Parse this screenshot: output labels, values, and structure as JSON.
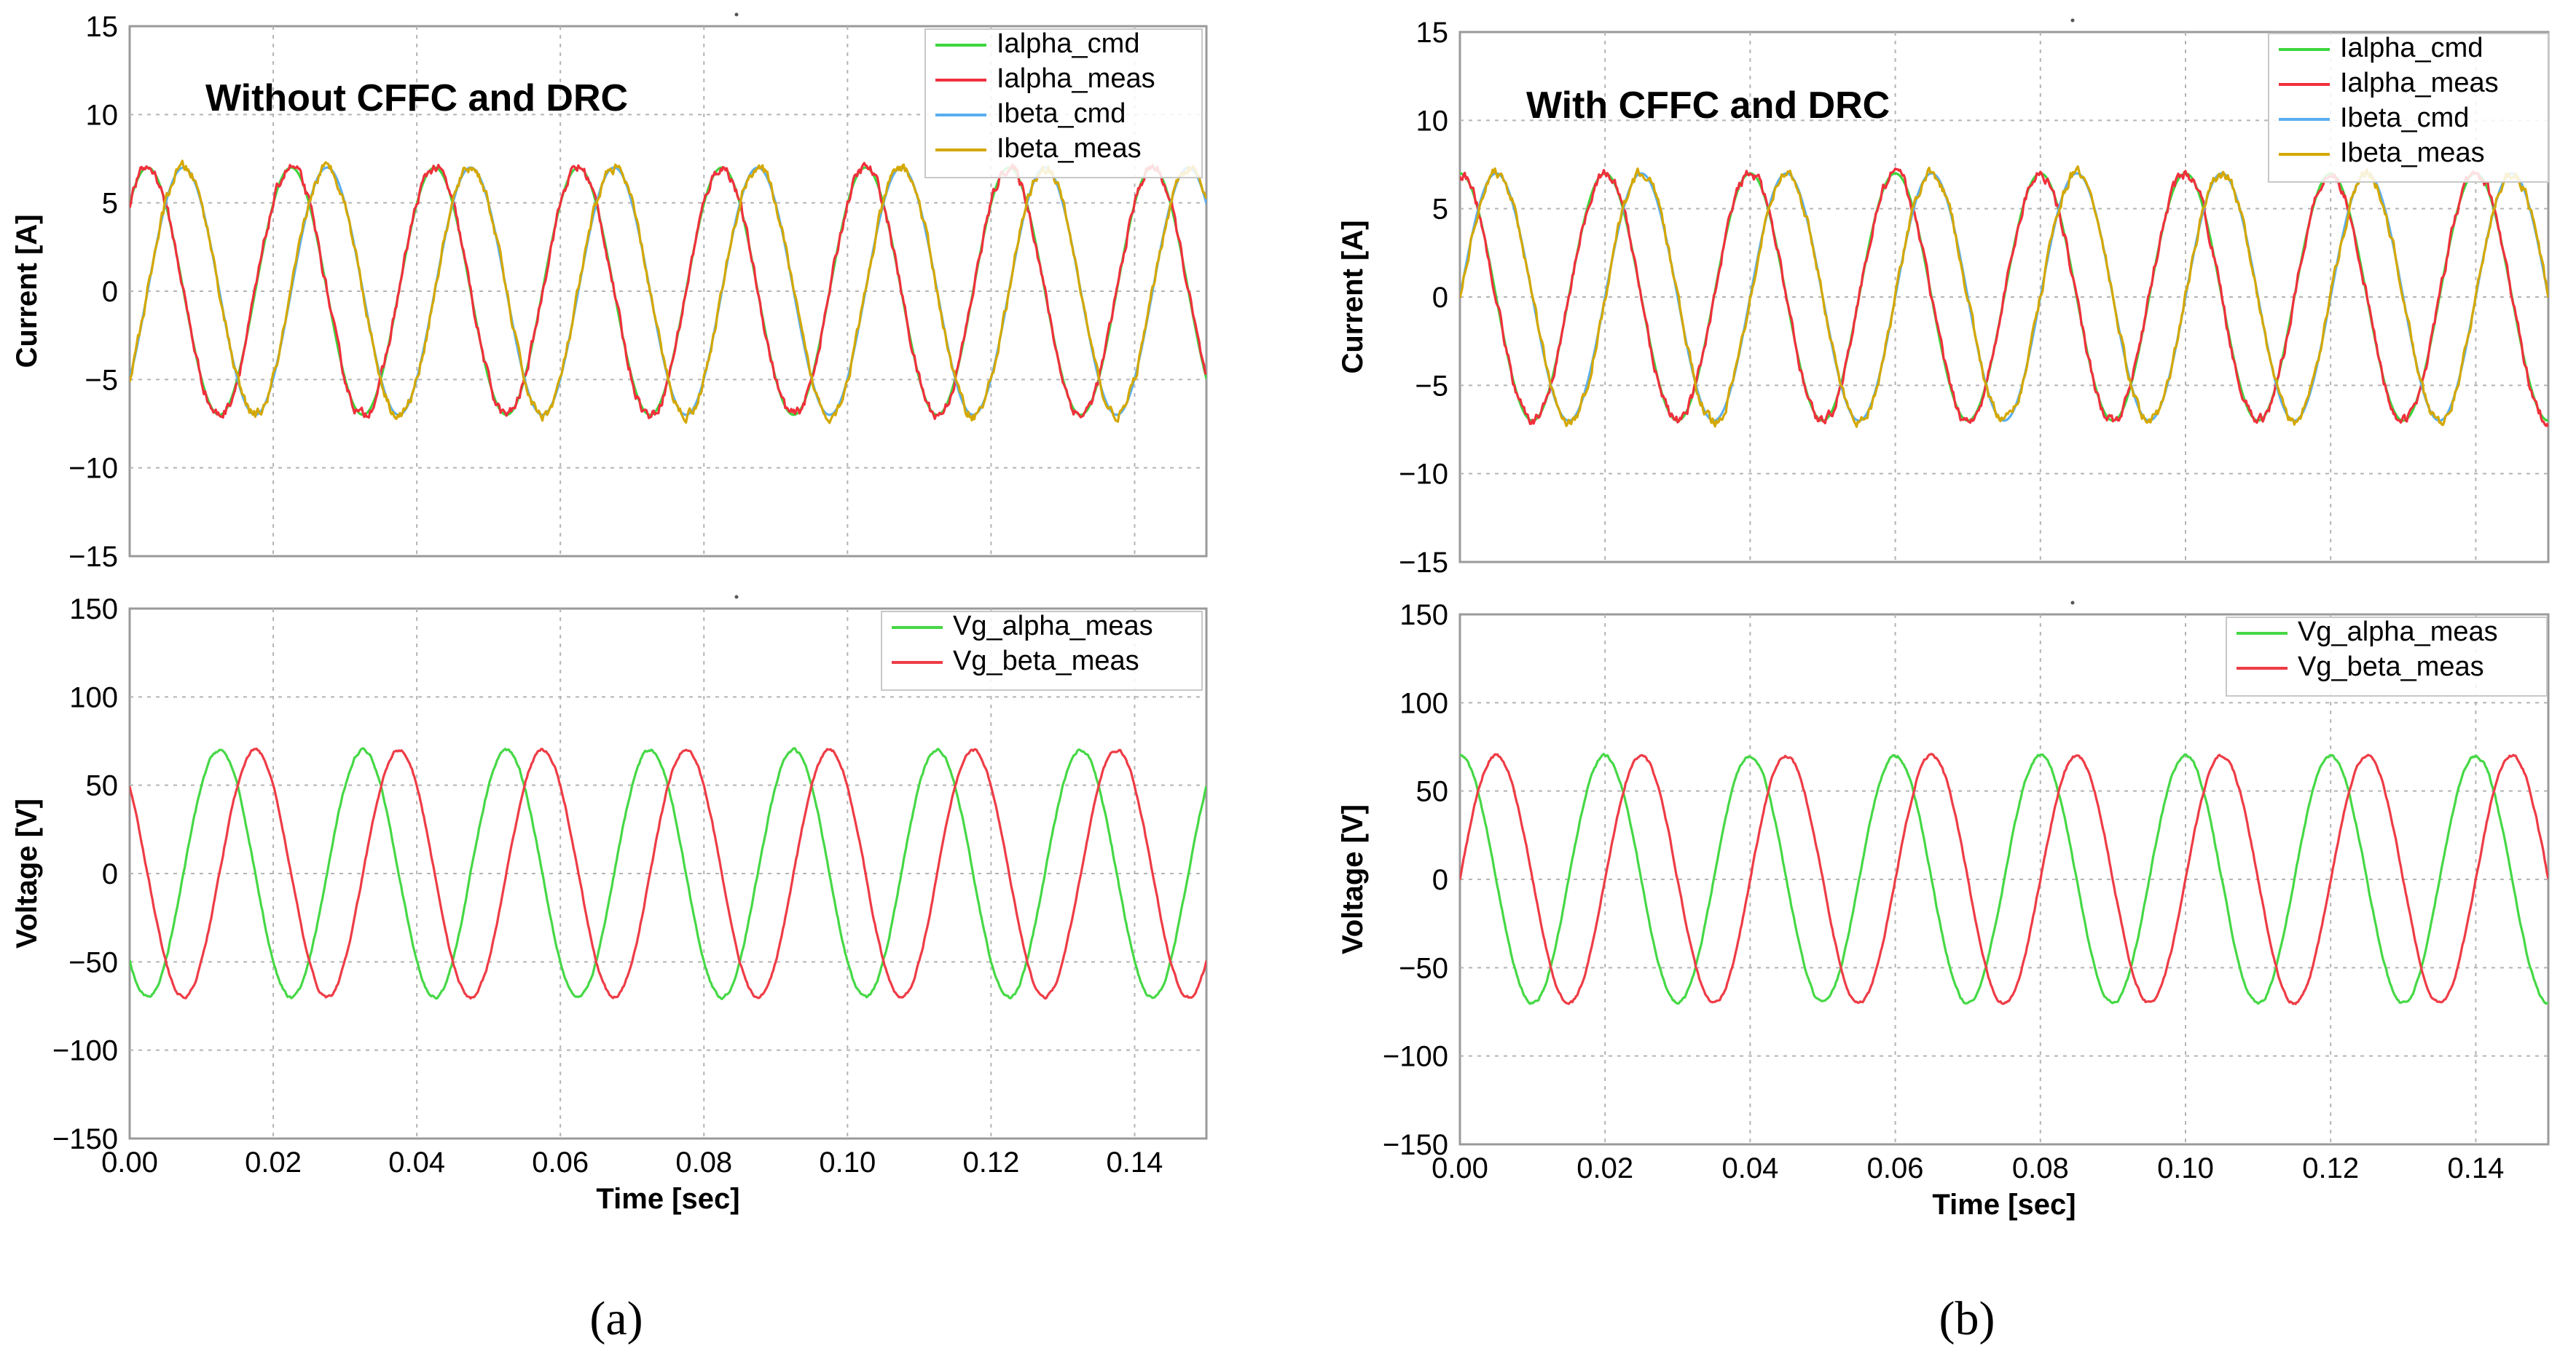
{
  "figure": {
    "panels": [
      {
        "label": "(a)",
        "annotation": "Without CFFC and DRC"
      },
      {
        "label": "(b)",
        "annotation": "With CFFC and DRC"
      }
    ]
  },
  "colors": {
    "green": "#3cd63c",
    "red": "#f0303c",
    "blue": "#5aaef0",
    "gold": "#d4a800",
    "vgreen": "#46d846",
    "vred": "#ee3c46",
    "grid": "#b4b4b4",
    "frame": "#9a9a9a"
  },
  "chart_data": [
    {
      "type": "line",
      "panel": "(a)",
      "annotation": "Without CFFC and DRC",
      "xlabel": "",
      "ylabel": "Current [A]",
      "xlim": [
        0,
        0.15
      ],
      "ylim": [
        -15,
        15
      ],
      "yticks": [
        15,
        10,
        5,
        0,
        -5,
        -10,
        -15
      ],
      "ytick_labels": [
        "15",
        "10",
        "5",
        "0",
        "−5",
        "−10",
        "−15"
      ],
      "xticks": [],
      "grid": true,
      "legend": {
        "position": "top-right",
        "entries": [
          "Ialpha_cmd",
          "Ialpha_meas",
          "Ibeta_cmd",
          "Ibeta_meas"
        ]
      },
      "series": [
        {
          "name": "Ialpha_cmd",
          "color": "green",
          "amplitude": 7.0,
          "frequency": 50,
          "phase_deg": 45,
          "noise": 0.0
        },
        {
          "name": "Ialpha_meas",
          "color": "red",
          "amplitude": 7.0,
          "frequency": 50,
          "phase_deg": 45,
          "noise": 0.35
        },
        {
          "name": "Ibeta_cmd",
          "color": "blue",
          "amplitude": 7.0,
          "frequency": 50,
          "phase_deg": -45,
          "noise": 0.0
        },
        {
          "name": "Ibeta_meas",
          "color": "gold",
          "amplitude": 7.0,
          "frequency": 50,
          "phase_deg": -45,
          "noise": 0.35
        }
      ]
    },
    {
      "type": "line",
      "panel": "(a)",
      "xlabel": "Time [sec]",
      "ylabel": "Voltage [V]",
      "xlim": [
        0,
        0.15
      ],
      "ylim": [
        -150,
        150
      ],
      "yticks": [
        150,
        100,
        50,
        0,
        -50,
        -100,
        -150
      ],
      "ytick_labels": [
        "150",
        "100",
        "50",
        "0",
        "−50",
        "−100",
        "−150"
      ],
      "xticks": [
        0,
        0.02,
        0.04,
        0.06,
        0.08,
        0.1,
        0.12,
        0.14
      ],
      "xtick_labels": [
        "0.00",
        "0.02",
        "0.04",
        "0.06",
        "0.08",
        "0.10",
        "0.12",
        "0.14"
      ],
      "grid": true,
      "legend": {
        "position": "top-right",
        "entries": [
          "Vg_alpha_meas",
          "Vg_beta_meas"
        ]
      },
      "series": [
        {
          "name": "Vg_alpha_meas",
          "color": "vgreen",
          "amplitude": 70,
          "frequency": 50,
          "phase_deg": -135,
          "noise": 1.0
        },
        {
          "name": "Vg_beta_meas",
          "color": "vred",
          "amplitude": 70,
          "frequency": 50,
          "phase_deg": 135,
          "noise": 1.0
        }
      ]
    },
    {
      "type": "line",
      "panel": "(b)",
      "annotation": "With CFFC and DRC",
      "xlabel": "",
      "ylabel": "Current [A]",
      "xlim": [
        0,
        0.15
      ],
      "ylim": [
        -15,
        15
      ],
      "yticks": [
        15,
        10,
        5,
        0,
        -5,
        -10,
        -15
      ],
      "ytick_labels": [
        "15",
        "10",
        "5",
        "0",
        "−5",
        "−10",
        "−15"
      ],
      "xticks": [],
      "grid": true,
      "legend": {
        "position": "top-right",
        "entries": [
          "Ialpha_cmd",
          "Ialpha_meas",
          "Ibeta_cmd",
          "Ibeta_meas"
        ]
      },
      "series": [
        {
          "name": "Ialpha_cmd",
          "color": "green",
          "amplitude": 7.0,
          "frequency": 50,
          "phase_deg": 90,
          "noise": 0.0
        },
        {
          "name": "Ialpha_meas",
          "color": "red",
          "amplitude": 7.0,
          "frequency": 50,
          "phase_deg": 90,
          "noise": 0.35
        },
        {
          "name": "Ibeta_cmd",
          "color": "blue",
          "amplitude": 7.0,
          "frequency": 50,
          "phase_deg": 0,
          "noise": 0.0
        },
        {
          "name": "Ibeta_meas",
          "color": "gold",
          "amplitude": 7.0,
          "frequency": 50,
          "phase_deg": 0,
          "noise": 0.35
        }
      ]
    },
    {
      "type": "line",
      "panel": "(b)",
      "xlabel": "Time [sec]",
      "ylabel": "Voltage [V]",
      "xlim": [
        0,
        0.15
      ],
      "ylim": [
        -150,
        150
      ],
      "yticks": [
        150,
        100,
        50,
        0,
        -50,
        -100,
        -150
      ],
      "ytick_labels": [
        "150",
        "100",
        "50",
        "0",
        "−50",
        "−100",
        "−150"
      ],
      "xticks": [
        0,
        0.02,
        0.04,
        0.06,
        0.08,
        0.1,
        0.12,
        0.14
      ],
      "xtick_labels": [
        "0.00",
        "0.02",
        "0.04",
        "0.06",
        "0.08",
        "0.10",
        "0.12",
        "0.14"
      ],
      "grid": true,
      "legend": {
        "position": "top-right",
        "entries": [
          "Vg_alpha_meas",
          "Vg_beta_meas"
        ]
      },
      "series": [
        {
          "name": "Vg_alpha_meas",
          "color": "vgreen",
          "amplitude": 70,
          "frequency": 50,
          "phase_deg": 90,
          "noise": 1.0
        },
        {
          "name": "Vg_beta_meas",
          "color": "vred",
          "amplitude": 70,
          "frequency": 50,
          "phase_deg": 0,
          "noise": 1.0
        }
      ]
    }
  ]
}
